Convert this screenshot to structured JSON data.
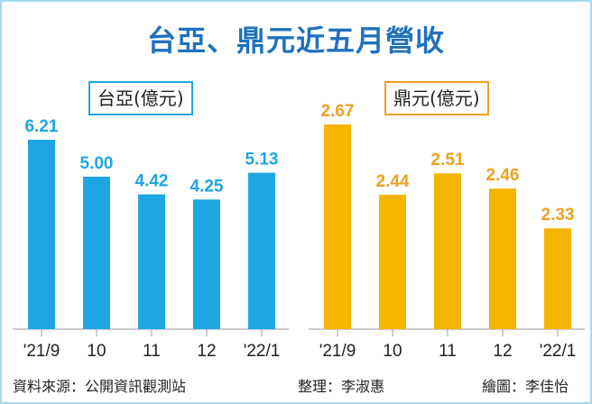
{
  "title": "台亞、鼎元近五月營收",
  "footer": {
    "source": "資料來源：公開資訊觀測站",
    "editor": "整理：李淑惠",
    "artist": "繪圖：李佳怡"
  },
  "chart_data": [
    {
      "type": "bar",
      "title": "台亞(億元)",
      "categories": [
        "'21/9",
        "10",
        "11",
        "12",
        "'22/1"
      ],
      "values": [
        6.21,
        5.0,
        4.42,
        4.25,
        5.13
      ],
      "ylim": [
        0,
        7
      ],
      "color": "#1ea6e2",
      "label_color": "#1ea6e2",
      "grid": false
    },
    {
      "type": "bar",
      "title": "鼎元(億元)",
      "categories": [
        "'21/9",
        "10",
        "11",
        "12",
        "'22/1"
      ],
      "values": [
        2.67,
        2.44,
        2.51,
        2.46,
        2.33
      ],
      "ylim": [
        2.0,
        2.7
      ],
      "color": "#f5b400",
      "label_color": "#f0a020",
      "grid": false
    }
  ]
}
